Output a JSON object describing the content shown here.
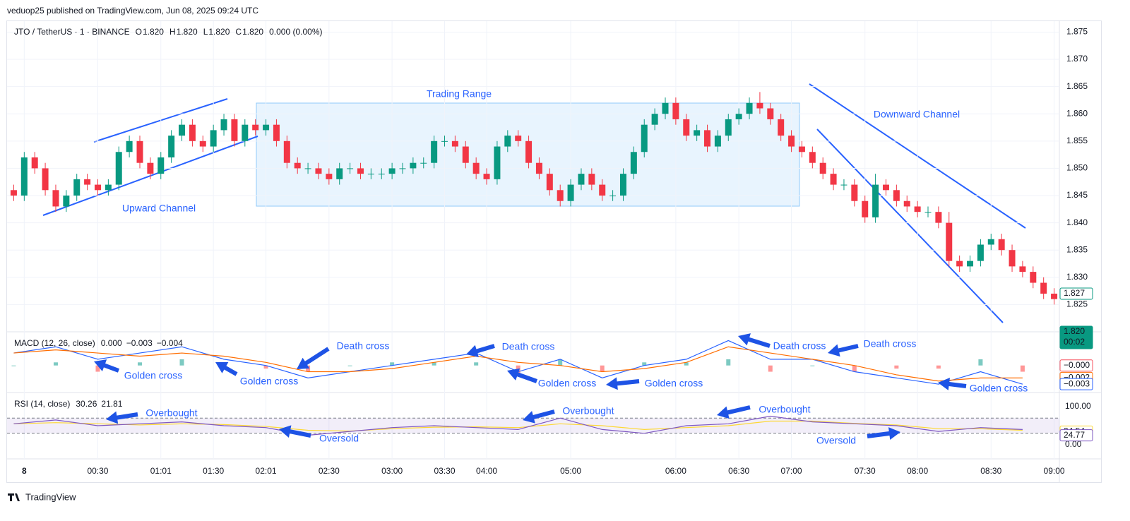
{
  "header": {
    "title": "veduop25 published on TradingView.com, Jun 08, 2025 09:24 UTC"
  },
  "footer": {
    "brand": "TradingView"
  },
  "chart_data": [
    {
      "type": "candlestick",
      "title": "JTO / TetherUS · 1 · BINANCE",
      "ohlc_legend": [
        {
          "label": "O",
          "value": "1.820"
        },
        {
          "label": "H",
          "value": "1.820"
        },
        {
          "label": "L",
          "value": "1.820"
        },
        {
          "label": "C",
          "value": "1.820"
        }
      ],
      "change": "0.000 (0.00%)",
      "up_color": "#089981",
      "down_color": "#f23645",
      "grid": true,
      "xlim": [
        -0.5,
        99.5
      ],
      "xticks": [
        {
          "value": 1,
          "label": "8"
        },
        {
          "value": 8,
          "label": "00:30"
        },
        {
          "value": 14,
          "label": "01:01"
        },
        {
          "value": 19,
          "label": "01:30"
        },
        {
          "value": 24,
          "label": "02:01"
        },
        {
          "value": 30,
          "label": "02:30"
        },
        {
          "value": 36,
          "label": "03:00"
        },
        {
          "value": 41,
          "label": "03:30"
        },
        {
          "value": 45,
          "label": "04:00"
        },
        {
          "value": 53,
          "label": "05:00"
        },
        {
          "value": 63,
          "label": "06:00"
        },
        {
          "value": 69,
          "label": "06:30"
        },
        {
          "value": 74,
          "label": "07:00"
        },
        {
          "value": 81,
          "label": "07:30"
        },
        {
          "value": 86,
          "label": "08:00"
        },
        {
          "value": 93,
          "label": "08:30"
        },
        {
          "value": 99,
          "label": "09:00"
        }
      ],
      "ylim": [
        1.82,
        1.877
      ],
      "yticks": [
        {
          "value": 1.825,
          "label": "1.825"
        },
        {
          "value": 1.83,
          "label": "1.830"
        },
        {
          "value": 1.835,
          "label": "1.835"
        },
        {
          "value": 1.84,
          "label": "1.840"
        },
        {
          "value": 1.845,
          "label": "1.845"
        },
        {
          "value": 1.85,
          "label": "1.850"
        },
        {
          "value": 1.855,
          "label": "1.855"
        },
        {
          "value": 1.86,
          "label": "1.860"
        },
        {
          "value": 1.865,
          "label": "1.865"
        },
        {
          "value": 1.87,
          "label": "1.870"
        },
        {
          "value": 1.875,
          "label": "1.875"
        }
      ],
      "open": [
        1.846,
        1.845,
        1.852,
        1.85,
        1.846,
        1.843,
        1.845,
        1.848,
        1.847,
        1.846,
        1.847,
        1.853,
        1.855,
        1.851,
        1.849,
        1.852,
        1.856,
        1.858,
        1.855,
        1.854,
        1.857,
        1.859,
        1.855,
        1.858,
        1.857,
        1.858,
        1.855,
        1.851,
        1.85,
        1.85,
        1.849,
        1.848,
        1.85,
        1.85,
        1.849,
        1.849,
        1.849,
        1.85,
        1.85,
        1.851,
        1.851,
        1.855,
        1.855,
        1.854,
        1.851,
        1.849,
        1.848,
        1.854,
        1.856,
        1.855,
        1.851,
        1.849,
        1.846,
        1.844,
        1.847,
        1.849,
        1.847,
        1.845,
        1.845,
        1.849,
        1.853,
        1.858,
        1.86,
        1.862,
        1.859,
        1.856,
        1.857,
        1.854,
        1.856,
        1.859,
        1.86,
        1.862,
        1.861,
        1.859,
        1.856,
        1.854,
        1.853,
        1.851,
        1.849,
        1.847,
        1.847,
        1.844,
        1.841,
        1.847,
        1.846,
        1.844,
        1.843,
        1.842,
        1.842,
        1.84,
        1.833,
        1.832,
        1.833,
        1.836,
        1.837,
        1.835,
        1.832,
        1.831,
        1.829,
        1.827
      ],
      "high": [
        1.847,
        1.853,
        1.853,
        1.851,
        1.847,
        1.846,
        1.849,
        1.849,
        1.848,
        1.848,
        1.854,
        1.856,
        1.856,
        1.852,
        1.853,
        1.857,
        1.859,
        1.859,
        1.856,
        1.858,
        1.86,
        1.86,
        1.859,
        1.859,
        1.859,
        1.859,
        1.856,
        1.852,
        1.851,
        1.851,
        1.85,
        1.851,
        1.851,
        1.851,
        1.85,
        1.85,
        1.851,
        1.851,
        1.852,
        1.852,
        1.856,
        1.856,
        1.856,
        1.855,
        1.852,
        1.85,
        1.855,
        1.857,
        1.857,
        1.856,
        1.852,
        1.85,
        1.847,
        1.848,
        1.85,
        1.85,
        1.848,
        1.846,
        1.85,
        1.854,
        1.859,
        1.861,
        1.863,
        1.863,
        1.86,
        1.858,
        1.858,
        1.857,
        1.86,
        1.861,
        1.863,
        1.864,
        1.862,
        1.86,
        1.857,
        1.855,
        1.854,
        1.852,
        1.85,
        1.848,
        1.848,
        1.845,
        1.849,
        1.848,
        1.847,
        1.845,
        1.844,
        1.843,
        1.843,
        1.842,
        1.834,
        1.834,
        1.837,
        1.838,
        1.838,
        1.836,
        1.833,
        1.832,
        1.83,
        1.828
      ],
      "low": [
        1.844,
        1.844,
        1.849,
        1.845,
        1.842,
        1.842,
        1.844,
        1.846,
        1.845,
        1.845,
        1.846,
        1.852,
        1.85,
        1.848,
        1.848,
        1.851,
        1.855,
        1.854,
        1.853,
        1.853,
        1.856,
        1.854,
        1.854,
        1.856,
        1.856,
        1.854,
        1.85,
        1.849,
        1.849,
        1.848,
        1.847,
        1.847,
        1.849,
        1.848,
        1.848,
        1.848,
        1.848,
        1.849,
        1.849,
        1.85,
        1.85,
        1.854,
        1.853,
        1.85,
        1.848,
        1.847,
        1.847,
        1.853,
        1.854,
        1.85,
        1.848,
        1.845,
        1.843,
        1.843,
        1.846,
        1.846,
        1.844,
        1.844,
        1.844,
        1.848,
        1.852,
        1.857,
        1.859,
        1.858,
        1.855,
        1.855,
        1.853,
        1.853,
        1.855,
        1.858,
        1.859,
        1.86,
        1.858,
        1.855,
        1.853,
        1.852,
        1.85,
        1.848,
        1.846,
        1.846,
        1.843,
        1.84,
        1.84,
        1.845,
        1.843,
        1.842,
        1.841,
        1.841,
        1.839,
        1.832,
        1.831,
        1.831,
        1.832,
        1.835,
        1.834,
        1.831,
        1.83,
        1.828,
        1.826,
        1.825
      ],
      "close": [
        1.845,
        1.852,
        1.85,
        1.846,
        1.843,
        1.845,
        1.848,
        1.847,
        1.846,
        1.847,
        1.853,
        1.855,
        1.851,
        1.849,
        1.852,
        1.856,
        1.858,
        1.855,
        1.854,
        1.857,
        1.859,
        1.855,
        1.858,
        1.857,
        1.858,
        1.855,
        1.851,
        1.85,
        1.85,
        1.849,
        1.848,
        1.85,
        1.85,
        1.849,
        1.849,
        1.849,
        1.85,
        1.85,
        1.851,
        1.851,
        1.855,
        1.855,
        1.854,
        1.851,
        1.849,
        1.848,
        1.854,
        1.856,
        1.855,
        1.851,
        1.849,
        1.846,
        1.844,
        1.847,
        1.849,
        1.847,
        1.845,
        1.845,
        1.849,
        1.853,
        1.858,
        1.86,
        1.862,
        1.859,
        1.856,
        1.857,
        1.854,
        1.856,
        1.859,
        1.86,
        1.862,
        1.861,
        1.859,
        1.856,
        1.854,
        1.853,
        1.851,
        1.849,
        1.847,
        1.847,
        1.844,
        1.841,
        1.847,
        1.846,
        1.844,
        1.843,
        1.842,
        1.842,
        1.84,
        1.833,
        1.832,
        1.833,
        1.836,
        1.837,
        1.835,
        1.832,
        1.831,
        1.829,
        1.827,
        1.826
      ],
      "price_labels": [
        {
          "value": 1.827,
          "label": "1.827",
          "color": "#089981",
          "outline": true
        },
        {
          "value": 1.82,
          "label": "1.820",
          "sub": "00:02",
          "color": "#089981",
          "outline": false
        }
      ],
      "annotations": [
        "Upward Channel",
        "Trading Range",
        "Downward Channel"
      ]
    },
    {
      "type": "macd",
      "title": "MACD (12, 26, close)",
      "legend_values": [
        {
          "label": "0.000",
          "color": "#089981"
        },
        {
          "label": "−0.003",
          "color": "#2962ff"
        },
        {
          "label": "−0.004",
          "color": "#ff6d00"
        }
      ],
      "xlim": [
        -0.5,
        99.5
      ],
      "ylim": [
        -0.004,
        0.0045
      ],
      "x": [
        0,
        4,
        8,
        12,
        16,
        20,
        24,
        28,
        32,
        36,
        40,
        44,
        48,
        52,
        56,
        60,
        64,
        68,
        72,
        76,
        80,
        84,
        88,
        92,
        96
      ],
      "series": [
        {
          "name": "MACD",
          "color": "#2962ff",
          "values": [
            0.002,
            0.003,
            0.001,
            0.002,
            0.003,
            0.001,
            0,
            -0.002,
            -0.001,
            0,
            0.001,
            0.002,
            -0.001,
            0.001,
            -0.002,
            0,
            0.001,
            0.004,
            0.001,
            0.001,
            -0.001,
            -0.002,
            -0.003,
            -0.001,
            -0.003
          ]
        },
        {
          "name": "Signal",
          "color": "#ff6d00",
          "values": [
            0.002,
            0.0025,
            0.002,
            0.0015,
            0.002,
            0.0015,
            0.0005,
            -0.001,
            -0.001,
            -0.0005,
            0.0005,
            0.0015,
            0.0005,
            0,
            -0.001,
            -0.0005,
            0.0005,
            0.003,
            0.002,
            0.001,
            0,
            -0.0015,
            -0.0025,
            -0.002,
            -0.002
          ]
        },
        {
          "name": "Histogram",
          "color": "#26a69a",
          "neg_color": "#ff5252",
          "values": [
            0,
            0.0005,
            -0.001,
            0.0005,
            0.001,
            -0.0005,
            -0.0005,
            -0.001,
            0,
            0.0005,
            0.0005,
            0.0005,
            -0.0015,
            0.001,
            -0.001,
            0.0005,
            0.0005,
            0.001,
            -0.001,
            0,
            -0.001,
            -0.0005,
            -0.0005,
            0.001,
            -0.001
          ]
        }
      ],
      "price_labels": [
        {
          "value": 0,
          "label": "−0.000",
          "color": "#f7525f"
        },
        {
          "value": -0.002,
          "label": "−0.002",
          "color": "#ff6d00"
        },
        {
          "value": -0.003,
          "label": "−0.003",
          "color": "#2962ff"
        }
      ],
      "annotations": [
        "Golden cross",
        "Golden cross",
        "Death cross",
        "Death cross",
        "Golden cross",
        "Golden cross",
        "Death cross",
        "Death cross",
        "Golden cross"
      ]
    },
    {
      "type": "rsi",
      "title": "RSI (14, close)",
      "legend_values": [
        {
          "label": "30.26",
          "color": "#7e57c2"
        },
        {
          "label": "21.81",
          "color": "#fdd835"
        }
      ],
      "xlim": [
        -0.5,
        99.5
      ],
      "ylim": [
        0,
        100
      ],
      "yticks": [
        {
          "value": 100,
          "label": "100.00"
        },
        {
          "value": 0,
          "label": "0.00"
        }
      ],
      "band": [
        30,
        70
      ],
      "x": [
        0,
        4,
        8,
        12,
        16,
        20,
        24,
        28,
        32,
        36,
        40,
        44,
        48,
        52,
        56,
        60,
        64,
        68,
        72,
        76,
        80,
        84,
        88,
        92,
        96
      ],
      "series": [
        {
          "name": "RSI",
          "color": "#7e57c2",
          "values": [
            55,
            65,
            50,
            55,
            60,
            50,
            45,
            25,
            35,
            45,
            50,
            45,
            40,
            70,
            40,
            30,
            50,
            55,
            75,
            60,
            55,
            50,
            35,
            45,
            40
          ]
        },
        {
          "name": "RSI-based MA",
          "color": "#fdd835",
          "values": [
            55,
            58,
            55,
            52,
            55,
            53,
            48,
            38,
            36,
            42,
            46,
            47,
            45,
            55,
            50,
            40,
            45,
            50,
            62,
            62,
            56,
            52,
            42,
            42,
            38
          ]
        }
      ],
      "price_labels": [
        {
          "value": 34.54,
          "label": "34.54",
          "color": "#fdd835"
        },
        {
          "value": 24.77,
          "label": "24.77",
          "color": "#7e57c2"
        }
      ],
      "annotations": [
        "Overbought",
        "Overbought",
        "Overbought",
        "Oversold",
        "Oversold"
      ]
    }
  ]
}
